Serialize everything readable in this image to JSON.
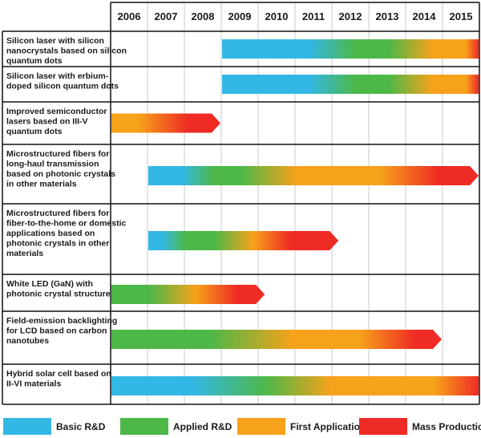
{
  "chart_data": {
    "type": "gantt-timeline",
    "years": [
      "2006",
      "2007",
      "2008",
      "2009",
      "2010",
      "2011",
      "2012",
      "2013",
      "2014",
      "2015"
    ],
    "x_range": [
      2006,
      2016
    ],
    "phases": [
      {
        "name": "Basic R&D",
        "color": "#33b8e6"
      },
      {
        "name": "Applied R&D",
        "color": "#4db848"
      },
      {
        "name": "First Applications",
        "color": "#f7a21b"
      },
      {
        "name": "Mass Production",
        "color": "#ee2b24"
      }
    ],
    "rows": [
      {
        "label": [
          "Silicon laser with silicon",
          "nanocrystals based on silicon",
          "quantum dots"
        ],
        "start": 2009,
        "end": 2016,
        "arrow": false,
        "stops": [
          [
            0,
            "Basic R&D"
          ],
          [
            0.34,
            "Basic R&D"
          ],
          [
            0.52,
            "Applied R&D"
          ],
          [
            0.65,
            "Applied R&D"
          ],
          [
            0.82,
            "First Applications"
          ],
          [
            0.95,
            "First Applications"
          ],
          [
            1,
            "Mass Production"
          ]
        ]
      },
      {
        "label": [
          "Silicon laser with erbium-",
          "doped silicon quantum dots"
        ],
        "start": 2009,
        "end": 2016,
        "arrow": false,
        "stops": [
          [
            0,
            "Basic R&D"
          ],
          [
            0.34,
            "Basic R&D"
          ],
          [
            0.52,
            "Applied R&D"
          ],
          [
            0.65,
            "Applied R&D"
          ],
          [
            0.82,
            "First Applications"
          ],
          [
            0.95,
            "First Applications"
          ],
          [
            1,
            "Mass Production"
          ]
        ]
      },
      {
        "label": [
          "Improved semiconductor",
          "lasers based on III-V",
          "quantum dots"
        ],
        "start": 2006,
        "end": 2009,
        "arrow": true,
        "stops": [
          [
            0,
            "First Applications"
          ],
          [
            0.25,
            "First Applications"
          ],
          [
            0.7,
            "Mass Production"
          ],
          [
            1,
            "Mass Production"
          ]
        ]
      },
      {
        "label": [
          "Microstructured fibers for",
          "long-haul transmission",
          "based on photonic crystals",
          "in other materials"
        ],
        "start": 2007,
        "end": 2016,
        "arrow": true,
        "stops": [
          [
            0,
            "Basic R&D"
          ],
          [
            0.1,
            "Basic R&D"
          ],
          [
            0.2,
            "Applied R&D"
          ],
          [
            0.28,
            "Applied R&D"
          ],
          [
            0.45,
            "First Applications"
          ],
          [
            0.7,
            "First Applications"
          ],
          [
            0.88,
            "Mass Production"
          ],
          [
            1,
            "Mass Production"
          ]
        ]
      },
      {
        "label": [
          "Microstructured fibers for",
          "fiber-to-the-home or domestic",
          "applications based on",
          "photonic crystals in other",
          "materials"
        ],
        "start": 2007,
        "end": 2012.2,
        "arrow": true,
        "stops": [
          [
            0,
            "Basic R&D"
          ],
          [
            0.07,
            "Basic R&D"
          ],
          [
            0.2,
            "Applied R&D"
          ],
          [
            0.35,
            "Applied R&D"
          ],
          [
            0.55,
            "First Applications"
          ],
          [
            0.75,
            "Mass Production"
          ],
          [
            1,
            "Mass Production"
          ]
        ]
      },
      {
        "label": [
          "White LED (GaN) with",
          "photonic crystal structure"
        ],
        "start": 2006,
        "end": 2010.2,
        "arrow": true,
        "stops": [
          [
            0,
            "Applied R&D"
          ],
          [
            0.25,
            "Applied R&D"
          ],
          [
            0.55,
            "First Applications"
          ],
          [
            0.82,
            "Mass Production"
          ],
          [
            1,
            "Mass Production"
          ]
        ]
      },
      {
        "label": [
          "Field-emission backlighting",
          "for LCD based on carbon",
          "nanotubes"
        ],
        "start": 2006,
        "end": 2015,
        "arrow": true,
        "stops": [
          [
            0,
            "Applied R&D"
          ],
          [
            0.3,
            "Applied R&D"
          ],
          [
            0.55,
            "First Applications"
          ],
          [
            0.75,
            "First Applications"
          ],
          [
            0.92,
            "Mass Production"
          ],
          [
            1,
            "Mass Production"
          ]
        ]
      },
      {
        "label": [
          "Hybrid solar cell based on",
          "II-VI materials"
        ],
        "start": 2006,
        "end": 2016,
        "arrow": false,
        "stops": [
          [
            0,
            "Basic R&D"
          ],
          [
            0.22,
            "Basic R&D"
          ],
          [
            0.42,
            "Applied R&D"
          ],
          [
            0.6,
            "First Applications"
          ],
          [
            0.88,
            "First Applications"
          ],
          [
            1,
            "Mass Production"
          ]
        ]
      }
    ]
  }
}
